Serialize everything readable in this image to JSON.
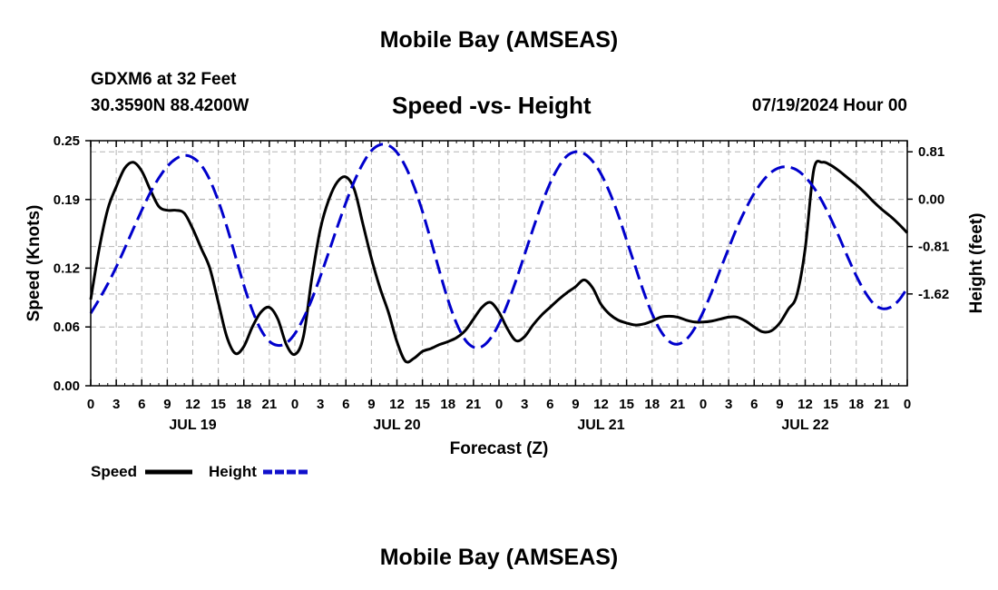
{
  "page": {
    "top_title": "Mobile Bay (AMSEAS)",
    "station": "GDXM6 at 32 Feet",
    "coords": "30.3590N  88.4200W",
    "forecast_time": "07/19/2024 Hour 00",
    "bottom_title": "Mobile Bay (AMSEAS)"
  },
  "colors": {
    "speed": "#000000",
    "height": "#0000cc",
    "grid": "#b4b4b4"
  },
  "legend": {
    "speed_label": "Speed",
    "height_label": "Height"
  },
  "chart_data": {
    "type": "line",
    "title": "Speed -vs- Height",
    "xlabel": "Forecast (Z)",
    "ylabel_left": "Speed (Knots)",
    "ylabel_right": "Height (feet)",
    "x_range_hours": [
      0,
      96
    ],
    "xtick_labels": [
      "0",
      "3",
      "6",
      "9",
      "12",
      "15",
      "18",
      "21",
      "0",
      "3",
      "6",
      "9",
      "12",
      "15",
      "18",
      "21",
      "0",
      "3",
      "6",
      "9",
      "12",
      "15",
      "18",
      "21",
      "0",
      "3",
      "6",
      "9",
      "12",
      "15",
      "18",
      "21",
      "0"
    ],
    "date_labels": [
      {
        "hour": 12,
        "label": "JUL 19"
      },
      {
        "hour": 36,
        "label": "JUL 20"
      },
      {
        "hour": 60,
        "label": "JUL 21"
      },
      {
        "hour": 84,
        "label": "JUL 22"
      }
    ],
    "left_axis": {
      "ylim": [
        0,
        0.25
      ],
      "ticks": [
        0.0,
        0.06,
        0.12,
        0.19,
        0.25
      ],
      "tick_labels": [
        "0.00",
        "0.06",
        "0.12",
        "0.19",
        "0.25"
      ]
    },
    "right_axis": {
      "ylim": [
        -3.19,
        1.0
      ],
      "ticks": [
        0.81,
        0.0,
        -0.81,
        -1.62
      ],
      "tick_labels": [
        "0.81",
        "0.00",
        "-0.81",
        "-1.62"
      ]
    },
    "grid": true,
    "series": [
      {
        "name": "Speed",
        "axis": "left",
        "style": "solid",
        "x": [
          0,
          1,
          2,
          3,
          4,
          5,
          6,
          7,
          8,
          9,
          10,
          11,
          12,
          13,
          14,
          15,
          16,
          17,
          18,
          19,
          20,
          21,
          22,
          23,
          24,
          25,
          26,
          27,
          28,
          29,
          30,
          31,
          32,
          33,
          34,
          35,
          36,
          37,
          38,
          39,
          40,
          41,
          42,
          43,
          44,
          45,
          46,
          47,
          48,
          49,
          50,
          51,
          52,
          53,
          54,
          55,
          56,
          57,
          58,
          59,
          60,
          61,
          62,
          63,
          64,
          65,
          66,
          67,
          68,
          69,
          70,
          71,
          72,
          73,
          74,
          75,
          76,
          77,
          78,
          79,
          80,
          81,
          82,
          83,
          84,
          85,
          86,
          87,
          88,
          89,
          90,
          91,
          92,
          93,
          94,
          95,
          96
        ],
        "values": [
          0.088,
          0.14,
          0.18,
          0.203,
          0.222,
          0.228,
          0.219,
          0.2,
          0.183,
          0.179,
          0.179,
          0.176,
          0.16,
          0.14,
          0.12,
          0.085,
          0.05,
          0.033,
          0.04,
          0.06,
          0.075,
          0.08,
          0.068,
          0.042,
          0.032,
          0.05,
          0.11,
          0.16,
          0.19,
          0.208,
          0.213,
          0.2,
          0.165,
          0.13,
          0.1,
          0.075,
          0.045,
          0.025,
          0.028,
          0.035,
          0.038,
          0.042,
          0.045,
          0.049,
          0.056,
          0.068,
          0.08,
          0.085,
          0.075,
          0.058,
          0.046,
          0.05,
          0.062,
          0.072,
          0.08,
          0.088,
          0.095,
          0.101,
          0.108,
          0.1,
          0.083,
          0.073,
          0.067,
          0.064,
          0.062,
          0.063,
          0.066,
          0.07,
          0.071,
          0.07,
          0.067,
          0.065,
          0.065,
          0.066,
          0.068,
          0.07,
          0.07,
          0.066,
          0.06,
          0.055,
          0.056,
          0.064,
          0.078,
          0.092,
          0.14,
          0.22,
          0.228,
          0.225,
          0.219,
          0.212,
          0.205,
          0.197,
          0.188,
          0.18,
          0.173,
          0.165,
          0.156
        ]
      },
      {
        "name": "Height",
        "axis": "right",
        "style": "dashed",
        "x": [
          0,
          1,
          2,
          3,
          4,
          5,
          6,
          7,
          8,
          9,
          10,
          11,
          12,
          13,
          14,
          15,
          16,
          17,
          18,
          19,
          20,
          21,
          22,
          23,
          24,
          25,
          26,
          27,
          28,
          29,
          30,
          31,
          32,
          33,
          34,
          35,
          36,
          37,
          38,
          39,
          40,
          41,
          42,
          43,
          44,
          45,
          46,
          47,
          48,
          49,
          50,
          51,
          52,
          53,
          54,
          55,
          56,
          57,
          58,
          59,
          60,
          61,
          62,
          63,
          64,
          65,
          66,
          67,
          68,
          69,
          70,
          71,
          72,
          73,
          74,
          75,
          76,
          77,
          78,
          79,
          80,
          81,
          82,
          83,
          84,
          85,
          86,
          87,
          88,
          89,
          90,
          91,
          92,
          93,
          94,
          95,
          96
        ],
        "values": [
          -1.95,
          -1.71,
          -1.45,
          -1.16,
          -0.84,
          -0.51,
          -0.19,
          0.11,
          0.36,
          0.56,
          0.69,
          0.75,
          0.71,
          0.58,
          0.33,
          -0.03,
          -0.47,
          -0.97,
          -1.47,
          -1.9,
          -2.23,
          -2.43,
          -2.5,
          -2.46,
          -2.3,
          -2.04,
          -1.71,
          -1.32,
          -0.9,
          -0.47,
          -0.06,
          0.31,
          0.61,
          0.83,
          0.93,
          0.92,
          0.8,
          0.56,
          0.22,
          -0.21,
          -0.71,
          -1.23,
          -1.72,
          -2.12,
          -2.4,
          -2.53,
          -2.52,
          -2.38,
          -2.13,
          -1.79,
          -1.39,
          -0.95,
          -0.51,
          -0.09,
          0.27,
          0.55,
          0.74,
          0.81,
          0.78,
          0.65,
          0.43,
          0.12,
          -0.26,
          -0.7,
          -1.14,
          -1.58,
          -1.96,
          -2.25,
          -2.43,
          -2.48,
          -2.4,
          -2.21,
          -1.93,
          -1.59,
          -1.21,
          -0.84,
          -0.48,
          -0.17,
          0.1,
          0.31,
          0.46,
          0.54,
          0.55,
          0.5,
          0.38,
          0.2,
          -0.04,
          -0.33,
          -0.65,
          -0.99,
          -1.31,
          -1.58,
          -1.78,
          -1.87,
          -1.85,
          -1.73,
          -1.52
        ]
      }
    ]
  }
}
